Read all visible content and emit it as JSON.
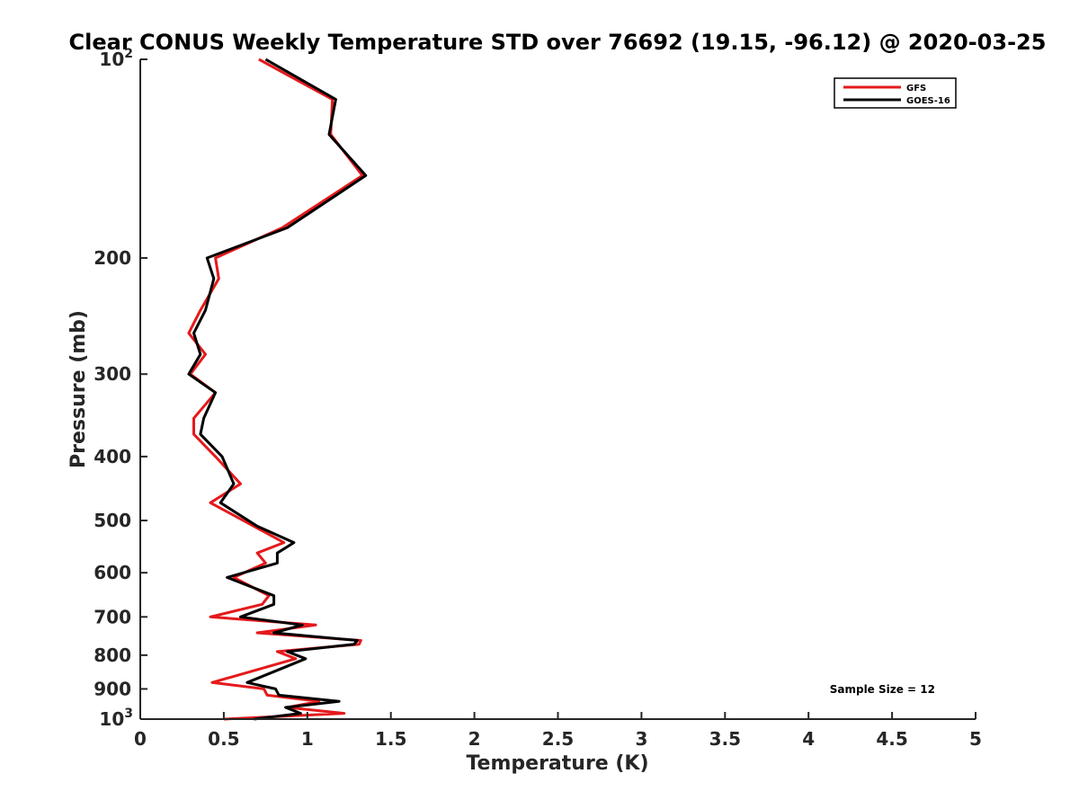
{
  "chart_data": {
    "type": "line",
    "title": "Clear CONUS Weekly Temperature STD over 76692 (19.15, -96.12) @ 2020-03-25",
    "xlabel": "Temperature (K)",
    "ylabel": "Pressure (mb)",
    "xlim": [
      0,
      5
    ],
    "ylim": [
      100,
      1000
    ],
    "yscale": "log",
    "y_reversed": true,
    "x_ticks": [
      0,
      0.5,
      1,
      1.5,
      2,
      2.5,
      3,
      3.5,
      4,
      4.5,
      5
    ],
    "x_tick_labels": [
      "0",
      "0.5",
      "1",
      "1.5",
      "2",
      "2.5",
      "3",
      "3.5",
      "4",
      "4.5",
      "5"
    ],
    "y_ticks": [
      {
        "value": 100,
        "base": "10",
        "exp": "2"
      },
      {
        "value": 200,
        "label": "200"
      },
      {
        "value": 300,
        "label": "300"
      },
      {
        "value": 400,
        "label": "400"
      },
      {
        "value": 500,
        "label": "500"
      },
      {
        "value": 600,
        "label": "600"
      },
      {
        "value": 700,
        "label": "700"
      },
      {
        "value": 800,
        "label": "800"
      },
      {
        "value": 900,
        "label": "900"
      },
      {
        "value": 1000,
        "base": "10",
        "exp": "3"
      }
    ],
    "legend_position": "top-right",
    "annotation": "Sample Size = 12",
    "series": [
      {
        "name": "GFS",
        "color": "#e41a1c",
        "points": [
          [
            0.71,
            100
          ],
          [
            1.15,
            115
          ],
          [
            1.14,
            130
          ],
          [
            1.33,
            150
          ],
          [
            0.85,
            180
          ],
          [
            0.45,
            200
          ],
          [
            0.47,
            215
          ],
          [
            0.36,
            240
          ],
          [
            0.29,
            260
          ],
          [
            0.39,
            280
          ],
          [
            0.3,
            300
          ],
          [
            0.45,
            320
          ],
          [
            0.32,
            350
          ],
          [
            0.32,
            370
          ],
          [
            0.45,
            400
          ],
          [
            0.6,
            440
          ],
          [
            0.42,
            470
          ],
          [
            0.68,
            510
          ],
          [
            0.86,
            540
          ],
          [
            0.7,
            560
          ],
          [
            0.75,
            580
          ],
          [
            0.56,
            610
          ],
          [
            0.77,
            650
          ],
          [
            0.73,
            670
          ],
          [
            0.42,
            700
          ],
          [
            1.05,
            720
          ],
          [
            0.7,
            740
          ],
          [
            1.32,
            760
          ],
          [
            1.31,
            770
          ],
          [
            0.82,
            790
          ],
          [
            0.93,
            810
          ],
          [
            0.43,
            880
          ],
          [
            0.74,
            900
          ],
          [
            0.76,
            920
          ],
          [
            1.07,
            940
          ],
          [
            0.88,
            960
          ],
          [
            1.22,
            980
          ],
          [
            0.5,
            1000
          ]
        ]
      },
      {
        "name": "GOES-16",
        "color": "#000000",
        "points": [
          [
            0.75,
            100
          ],
          [
            1.17,
            115
          ],
          [
            1.13,
            130
          ],
          [
            1.35,
            150
          ],
          [
            0.88,
            180
          ],
          [
            0.4,
            200
          ],
          [
            0.44,
            215
          ],
          [
            0.39,
            240
          ],
          [
            0.32,
            260
          ],
          [
            0.36,
            280
          ],
          [
            0.29,
            300
          ],
          [
            0.45,
            320
          ],
          [
            0.38,
            350
          ],
          [
            0.36,
            370
          ],
          [
            0.49,
            400
          ],
          [
            0.56,
            440
          ],
          [
            0.48,
            470
          ],
          [
            0.7,
            510
          ],
          [
            0.92,
            540
          ],
          [
            0.82,
            560
          ],
          [
            0.82,
            580
          ],
          [
            0.52,
            610
          ],
          [
            0.8,
            650
          ],
          [
            0.8,
            670
          ],
          [
            0.6,
            700
          ],
          [
            0.97,
            720
          ],
          [
            0.8,
            740
          ],
          [
            1.3,
            760
          ],
          [
            1.28,
            770
          ],
          [
            0.88,
            790
          ],
          [
            0.99,
            810
          ],
          [
            0.64,
            880
          ],
          [
            0.81,
            900
          ],
          [
            0.83,
            920
          ],
          [
            1.19,
            940
          ],
          [
            0.87,
            960
          ],
          [
            0.96,
            980
          ],
          [
            0.68,
            1000
          ]
        ]
      }
    ]
  }
}
